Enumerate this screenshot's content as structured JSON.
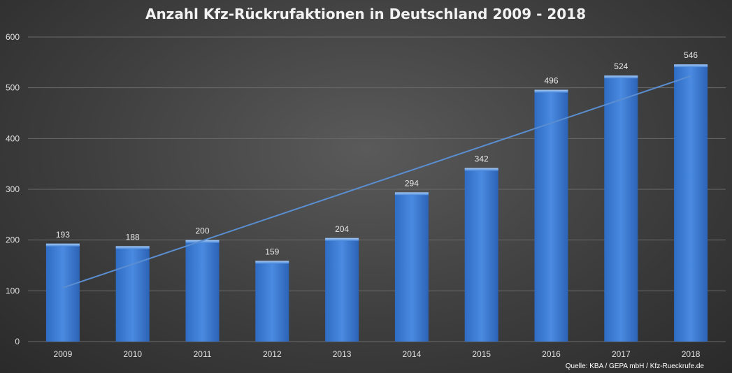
{
  "chart_data": {
    "type": "bar",
    "title": "Anzahl Kfz-Rückrufaktionen in Deutschland 2009 - 2018",
    "categories": [
      "2009",
      "2010",
      "2011",
      "2012",
      "2013",
      "2014",
      "2015",
      "2016",
      "2017",
      "2018"
    ],
    "values": [
      193,
      188,
      200,
      159,
      204,
      294,
      342,
      496,
      524,
      546
    ],
    "yticks": [
      "0",
      "100",
      "200",
      "300",
      "400",
      "500",
      "600"
    ],
    "ylim": [
      0,
      600
    ],
    "grid": true,
    "trendline": true,
    "data_labels": true,
    "bar_color": "#3d7ed6",
    "trend_color": "#5a8ed0",
    "source": "Quelle: KBA / GEPA mbH / Kfz-Rueckrufe.de"
  }
}
